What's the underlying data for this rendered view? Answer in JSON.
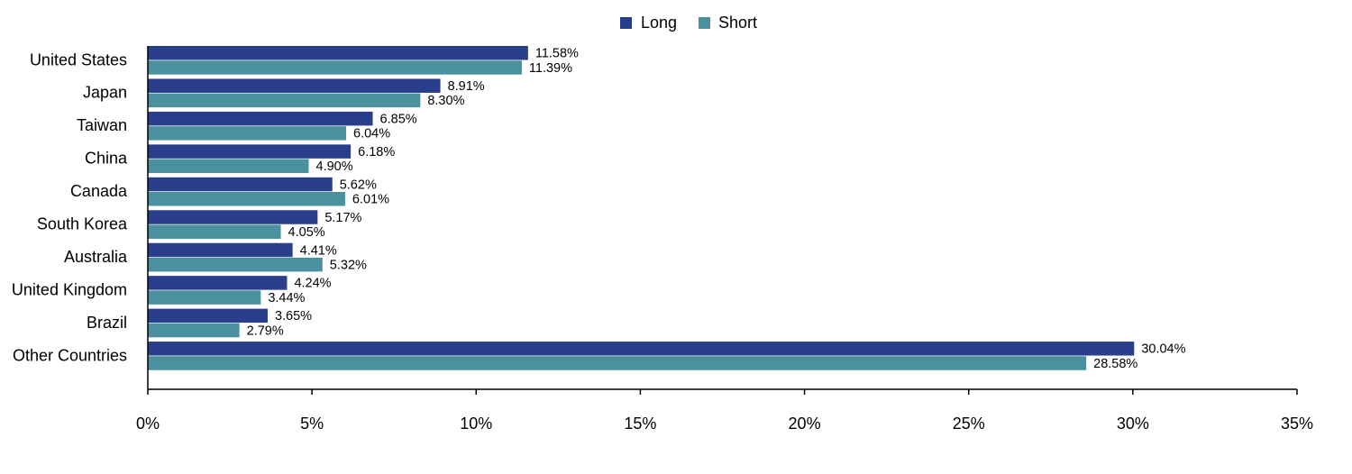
{
  "chart_data": {
    "type": "bar",
    "orientation": "horizontal",
    "title": "",
    "xlabel": "",
    "ylabel": "",
    "categories": [
      "United States",
      "Japan",
      "Taiwan",
      "China",
      "Canada",
      "South Korea",
      "Australia",
      "United Kingdom",
      "Brazil",
      "Other Countries"
    ],
    "series": [
      {
        "name": "Long",
        "color": "#2a3f8c",
        "values": [
          11.58,
          8.91,
          6.85,
          6.18,
          5.62,
          5.17,
          4.41,
          4.24,
          3.65,
          30.04
        ],
        "labels": [
          "11.58%",
          "8.91%",
          "6.85%",
          "6.18%",
          "5.62%",
          "5.17%",
          "4.41%",
          "4.24%",
          "3.65%",
          "30.04%"
        ]
      },
      {
        "name": "Short",
        "color": "#4a909e",
        "values": [
          11.39,
          8.3,
          6.04,
          4.9,
          6.01,
          4.05,
          5.32,
          3.44,
          2.79,
          28.58
        ],
        "labels": [
          "11.39%",
          "8.30%",
          "6.04%",
          "4.90%",
          "6.01%",
          "4.05%",
          "5.32%",
          "3.44%",
          "2.79%",
          "28.58%"
        ]
      }
    ],
    "xlim": [
      0,
      35
    ],
    "xticks": [
      0,
      5,
      10,
      15,
      20,
      25,
      30,
      35
    ],
    "xtick_labels": [
      "0%",
      "5%",
      "10%",
      "15%",
      "20%",
      "25%",
      "30%",
      "35%"
    ],
    "grid": false,
    "legend_position": "top-center"
  }
}
